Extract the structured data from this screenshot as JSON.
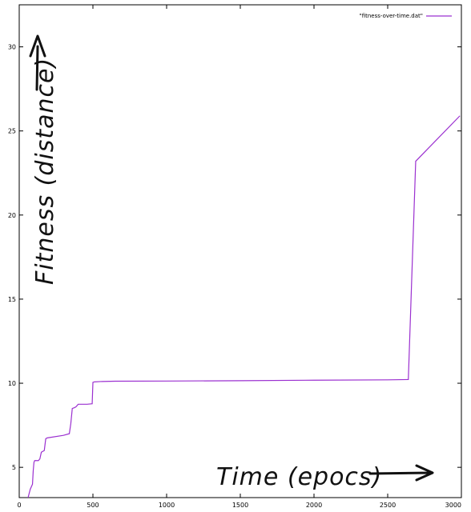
{
  "chart_data": {
    "type": "line",
    "title": "",
    "xlabel": "Time (epocs)",
    "ylabel": "Fitness (distance)",
    "xlim": [
      0,
      3000
    ],
    "ylim": [
      3.2,
      32.5
    ],
    "grid": false,
    "legend_position": "top-right",
    "x_ticks": [
      0,
      500,
      1000,
      1500,
      2000,
      2500,
      3000
    ],
    "y_ticks": [
      5,
      10,
      15,
      20,
      25,
      30
    ],
    "series": [
      {
        "name": "\"fitness-over-time.dat\"",
        "color": "#9b30d0",
        "x": [
          60,
          75,
          90,
          95,
          100,
          105,
          130,
          140,
          150,
          170,
          180,
          190,
          300,
          340,
          350,
          360,
          375,
          385,
          400,
          460,
          495,
          500,
          510,
          550,
          650,
          1000,
          1500,
          2000,
          2500,
          2640,
          2690,
          2990
        ],
        "y": [
          3.2,
          3.7,
          4.0,
          4.8,
          5.3,
          5.4,
          5.4,
          5.5,
          5.9,
          6.0,
          6.7,
          6.75,
          6.9,
          7.0,
          7.6,
          8.5,
          8.55,
          8.6,
          8.75,
          8.75,
          8.78,
          10.05,
          10.08,
          10.1,
          10.12,
          10.13,
          10.15,
          10.18,
          10.2,
          10.22,
          23.2,
          25.9
        ]
      }
    ]
  }
}
